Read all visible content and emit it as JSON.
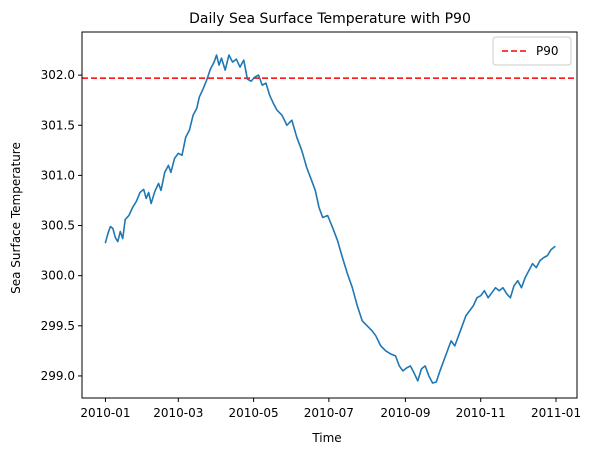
{
  "chart_data": {
    "type": "line",
    "title": "Daily Sea Surface Temperature with P90",
    "xlabel": "Time",
    "ylabel": "Sea Surface Temperature",
    "xlim": [
      "2009-12-13",
      "2011-01-18"
    ],
    "ylim": [
      298.78,
      302.43
    ],
    "grid": false,
    "legend_position": "top-right",
    "x_ticks": [
      "2010-01",
      "2010-03",
      "2010-05",
      "2010-07",
      "2010-09",
      "2010-11",
      "2011-01"
    ],
    "y_ticks": [
      299.0,
      299.5,
      300.0,
      300.5,
      301.0,
      301.5,
      302.0
    ],
    "reference_lines": [
      {
        "name": "P90",
        "y": 301.97,
        "color": "#ff0000",
        "style": "dashed"
      }
    ],
    "series": [
      {
        "color": "#1f77b4",
        "points": [
          [
            "2010-01-01",
            300.33
          ],
          [
            "2010-01-03",
            300.42
          ],
          [
            "2010-01-05",
            300.49
          ],
          [
            "2010-01-07",
            300.47
          ],
          [
            "2010-01-09",
            300.38
          ],
          [
            "2010-01-11",
            300.34
          ],
          [
            "2010-01-13",
            300.44
          ],
          [
            "2010-01-15",
            300.37
          ],
          [
            "2010-01-17",
            300.56
          ],
          [
            "2010-01-20",
            300.6
          ],
          [
            "2010-01-23",
            300.68
          ],
          [
            "2010-01-26",
            300.74
          ],
          [
            "2010-01-29",
            300.83
          ],
          [
            "2010-02-01",
            300.86
          ],
          [
            "2010-02-03",
            300.77
          ],
          [
            "2010-02-05",
            300.83
          ],
          [
            "2010-02-07",
            300.72
          ],
          [
            "2010-02-10",
            300.84
          ],
          [
            "2010-02-13",
            300.92
          ],
          [
            "2010-02-15",
            300.85
          ],
          [
            "2010-02-18",
            301.03
          ],
          [
            "2010-02-21",
            301.1
          ],
          [
            "2010-02-23",
            301.03
          ],
          [
            "2010-02-26",
            301.17
          ],
          [
            "2010-03-01",
            301.22
          ],
          [
            "2010-03-04",
            301.2
          ],
          [
            "2010-03-07",
            301.38
          ],
          [
            "2010-03-10",
            301.45
          ],
          [
            "2010-03-13",
            301.6
          ],
          [
            "2010-03-16",
            301.67
          ],
          [
            "2010-03-18",
            301.78
          ],
          [
            "2010-03-21",
            301.86
          ],
          [
            "2010-03-24",
            301.95
          ],
          [
            "2010-03-27",
            302.06
          ],
          [
            "2010-03-30",
            302.13
          ],
          [
            "2010-04-01",
            302.2
          ],
          [
            "2010-04-03",
            302.1
          ],
          [
            "2010-04-05",
            302.17
          ],
          [
            "2010-04-08",
            302.05
          ],
          [
            "2010-04-11",
            302.2
          ],
          [
            "2010-04-14",
            302.13
          ],
          [
            "2010-04-17",
            302.16
          ],
          [
            "2010-04-20",
            302.08
          ],
          [
            "2010-04-23",
            302.15
          ],
          [
            "2010-04-26",
            301.96
          ],
          [
            "2010-04-29",
            301.94
          ],
          [
            "2010-05-02",
            301.98
          ],
          [
            "2010-05-05",
            302.0
          ],
          [
            "2010-05-08",
            301.9
          ],
          [
            "2010-05-11",
            301.92
          ],
          [
            "2010-05-14",
            301.8
          ],
          [
            "2010-05-17",
            301.72
          ],
          [
            "2010-05-20",
            301.65
          ],
          [
            "2010-05-24",
            301.6
          ],
          [
            "2010-05-28",
            301.5
          ],
          [
            "2010-06-01",
            301.55
          ],
          [
            "2010-06-05",
            301.38
          ],
          [
            "2010-06-09",
            301.25
          ],
          [
            "2010-06-13",
            301.08
          ],
          [
            "2010-06-17",
            300.95
          ],
          [
            "2010-06-20",
            300.85
          ],
          [
            "2010-06-23",
            300.68
          ],
          [
            "2010-06-26",
            300.58
          ],
          [
            "2010-06-30",
            300.6
          ],
          [
            "2010-07-04",
            300.48
          ],
          [
            "2010-07-08",
            300.35
          ],
          [
            "2010-07-12",
            300.18
          ],
          [
            "2010-07-16",
            300.02
          ],
          [
            "2010-07-20",
            299.88
          ],
          [
            "2010-07-24",
            299.7
          ],
          [
            "2010-07-28",
            299.55
          ],
          [
            "2010-08-01",
            299.5
          ],
          [
            "2010-08-05",
            299.45
          ],
          [
            "2010-08-08",
            299.4
          ],
          [
            "2010-08-12",
            299.3
          ],
          [
            "2010-08-16",
            299.25
          ],
          [
            "2010-08-20",
            299.22
          ],
          [
            "2010-08-24",
            299.2
          ],
          [
            "2010-08-27",
            299.1
          ],
          [
            "2010-08-30",
            299.05
          ],
          [
            "2010-09-02",
            299.08
          ],
          [
            "2010-09-05",
            299.1
          ],
          [
            "2010-09-08",
            299.03
          ],
          [
            "2010-09-11",
            298.95
          ],
          [
            "2010-09-14",
            299.07
          ],
          [
            "2010-09-17",
            299.1
          ],
          [
            "2010-09-20",
            299.0
          ],
          [
            "2010-09-23",
            298.93
          ],
          [
            "2010-09-26",
            298.94
          ],
          [
            "2010-09-29",
            299.05
          ],
          [
            "2010-10-02",
            299.15
          ],
          [
            "2010-10-05",
            299.25
          ],
          [
            "2010-10-08",
            299.35
          ],
          [
            "2010-10-11",
            299.3
          ],
          [
            "2010-10-14",
            299.4
          ],
          [
            "2010-10-17",
            299.5
          ],
          [
            "2010-10-20",
            299.6
          ],
          [
            "2010-10-23",
            299.65
          ],
          [
            "2010-10-26",
            299.7
          ],
          [
            "2010-10-29",
            299.78
          ],
          [
            "2010-11-01",
            299.8
          ],
          [
            "2010-11-04",
            299.85
          ],
          [
            "2010-11-07",
            299.78
          ],
          [
            "2010-11-10",
            299.83
          ],
          [
            "2010-11-13",
            299.88
          ],
          [
            "2010-11-16",
            299.85
          ],
          [
            "2010-11-19",
            299.88
          ],
          [
            "2010-11-22",
            299.82
          ],
          [
            "2010-11-25",
            299.78
          ],
          [
            "2010-11-28",
            299.9
          ],
          [
            "2010-12-01",
            299.95
          ],
          [
            "2010-12-04",
            299.88
          ],
          [
            "2010-12-07",
            299.98
          ],
          [
            "2010-12-10",
            300.05
          ],
          [
            "2010-12-13",
            300.12
          ],
          [
            "2010-12-16",
            300.08
          ],
          [
            "2010-12-19",
            300.15
          ],
          [
            "2010-12-22",
            300.18
          ],
          [
            "2010-12-25",
            300.2
          ],
          [
            "2010-12-28",
            300.26
          ],
          [
            "2010-12-31",
            300.29
          ]
        ]
      }
    ]
  }
}
